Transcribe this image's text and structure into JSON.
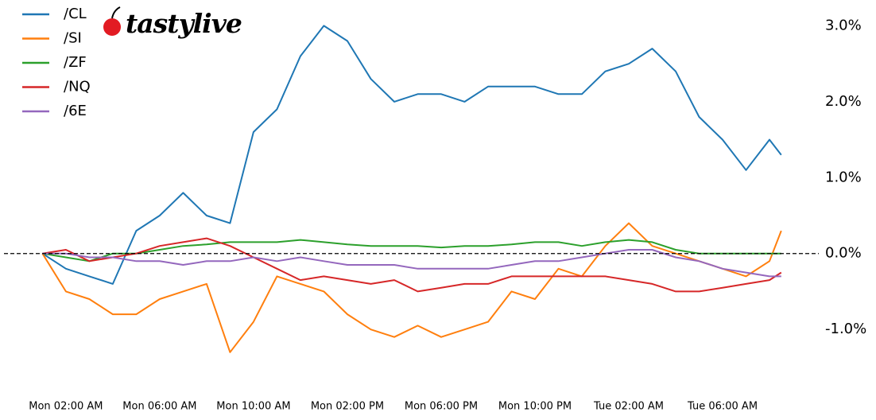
{
  "chart_data": {
    "type": "line",
    "logo": "tastylive",
    "x": [
      1,
      2,
      3,
      4,
      5,
      6,
      7,
      8,
      9,
      10,
      11,
      12,
      13,
      14,
      15,
      16,
      17,
      18,
      19,
      20,
      21,
      22,
      23,
      24,
      25,
      26,
      27,
      28,
      29,
      30,
      31,
      32,
      32.5
    ],
    "xlim": [
      -0.64,
      34.1
    ],
    "xticks": [
      {
        "value": 2,
        "label": "Mon 02:00 AM"
      },
      {
        "value": 6,
        "label": "Mon 06:00 AM"
      },
      {
        "value": 10,
        "label": "Mon 10:00 AM"
      },
      {
        "value": 14,
        "label": "Mon 02:00 PM"
      },
      {
        "value": 18,
        "label": "Mon 06:00 PM"
      },
      {
        "value": 22,
        "label": "Mon 10:00 PM"
      },
      {
        "value": 26,
        "label": "Tue 02:00 AM"
      },
      {
        "value": 30,
        "label": "Tue 06:00 AM"
      }
    ],
    "ylim": [
      -1.69,
      3.34
    ],
    "yticks": [
      {
        "value": 3,
        "label": "3.0%"
      },
      {
        "value": 2,
        "label": "2.0%"
      },
      {
        "value": 1,
        "label": "1.0%"
      },
      {
        "value": 0,
        "label": "0.0%"
      },
      {
        "value": -1,
        "label": "-1.0%"
      }
    ],
    "zero_line": 0,
    "series": [
      {
        "name": "/CL",
        "color": "#1f77b4",
        "values": [
          0,
          -0.2,
          -0.3,
          -0.4,
          0.3,
          0.5,
          0.8,
          0.5,
          0.4,
          1.6,
          1.9,
          2.6,
          3.0,
          2.8,
          2.3,
          2.0,
          2.1,
          2.1,
          2.0,
          2.2,
          2.2,
          2.2,
          2.1,
          2.1,
          2.4,
          2.5,
          2.7,
          2.4,
          1.8,
          1.5,
          1.1,
          1.5,
          1.3
        ]
      },
      {
        "name": "/SI",
        "color": "#ff7f0e",
        "values": [
          0,
          -0.5,
          -0.6,
          -0.8,
          -0.8,
          -0.6,
          -0.5,
          -0.4,
          -1.3,
          -0.9,
          -0.3,
          -0.4,
          -0.5,
          -0.8,
          -1.0,
          -1.1,
          -0.95,
          -1.1,
          -1.0,
          -0.9,
          -0.5,
          -0.6,
          -0.2,
          -0.3,
          0.1,
          0.4,
          0.1,
          0,
          -0.1,
          -0.2,
          -0.3,
          -0.1,
          0.3
        ]
      },
      {
        "name": "/ZF",
        "color": "#2ca02c",
        "values": [
          0,
          -0.05,
          -0.1,
          0,
          0.0,
          0.05,
          0.1,
          0.12,
          0.15,
          0.15,
          0.15,
          0.18,
          0.15,
          0.12,
          0.1,
          0.1,
          0.1,
          0.08,
          0.1,
          0.1,
          0.12,
          0.15,
          0.15,
          0.1,
          0.15,
          0.18,
          0.15,
          0.05,
          0.0,
          0.0,
          0.0,
          0.0,
          0.0
        ]
      },
      {
        "name": "/NQ",
        "color": "#d62728",
        "values": [
          0,
          0.05,
          -0.1,
          -0.05,
          0.0,
          0.1,
          0.15,
          0.2,
          0.1,
          -0.05,
          -0.2,
          -0.35,
          -0.3,
          -0.35,
          -0.4,
          -0.35,
          -0.5,
          -0.45,
          -0.4,
          -0.4,
          -0.3,
          -0.3,
          -0.3,
          -0.3,
          -0.3,
          -0.35,
          -0.4,
          -0.5,
          -0.5,
          -0.45,
          -0.4,
          -0.35,
          -0.25
        ]
      },
      {
        "name": "/6E",
        "color": "#9467bd",
        "values": [
          0,
          0,
          -0.05,
          -0.05,
          -0.1,
          -0.1,
          -0.15,
          -0.1,
          -0.1,
          -0.05,
          -0.1,
          -0.05,
          -0.1,
          -0.15,
          -0.15,
          -0.15,
          -0.2,
          -0.2,
          -0.2,
          -0.2,
          -0.15,
          -0.1,
          -0.1,
          -0.05,
          0,
          0.05,
          0.05,
          -0.05,
          -0.1,
          -0.2,
          -0.25,
          -0.3,
          -0.3
        ]
      }
    ]
  }
}
